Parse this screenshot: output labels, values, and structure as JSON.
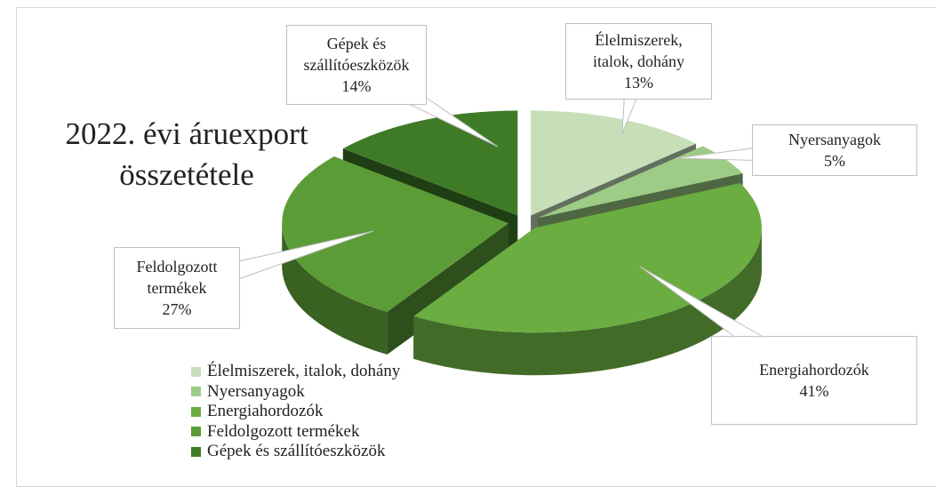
{
  "chart_data": {
    "type": "pie",
    "title": "2022. évi áruexport összetétele",
    "categories": [
      "Élelmiszerek, italok, dohány",
      "Nyersanyagok",
      "Energiahordozók",
      "Feldolgozott termékek",
      "Gépek és szállítóeszközök"
    ],
    "values": [
      13,
      5,
      41,
      27,
      14
    ],
    "value_labels": [
      "13%",
      "5%",
      "41%",
      "27%",
      "14%"
    ],
    "colors": [
      "#c6dfb9",
      "#9dcc86",
      "#6bad41",
      "#5c9c37",
      "#3f7b27"
    ],
    "legend": "bottom-left"
  }
}
